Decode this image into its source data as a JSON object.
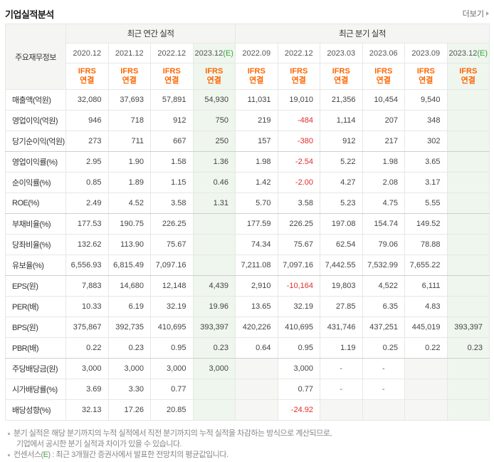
{
  "page": {
    "title": "기업실적분석",
    "more_label": "더보기"
  },
  "colors": {
    "ifrs_orange": "#ff6600",
    "estimate_green": "#3aa63a",
    "negative_red": "#e32c2c",
    "estimate_col_bg": "#eff6ee",
    "strong_border": "#c3c3c1"
  },
  "table": {
    "corner_label": "주요재무정보",
    "annual_band_label": "최근 연간 실적",
    "quarter_band_label": "최근 분기 실적",
    "ifrs_line1": "IFRS",
    "ifrs_line2": "연결",
    "estimate_suffix": "(E)",
    "annual_count": 4,
    "group_end_rows": [
      2,
      5,
      8,
      12
    ],
    "columns": [
      {
        "period": "2020.12",
        "estimate": false,
        "section": "annual"
      },
      {
        "period": "2021.12",
        "estimate": false,
        "section": "annual"
      },
      {
        "period": "2022.12",
        "estimate": false,
        "section": "annual"
      },
      {
        "period": "2023.12",
        "estimate": true,
        "section": "annual"
      },
      {
        "period": "2022.09",
        "estimate": false,
        "section": "quarter"
      },
      {
        "period": "2022.12",
        "estimate": false,
        "section": "quarter"
      },
      {
        "period": "2023.03",
        "estimate": false,
        "section": "quarter"
      },
      {
        "period": "2023.06",
        "estimate": false,
        "section": "quarter"
      },
      {
        "period": "2023.09",
        "estimate": false,
        "section": "quarter"
      },
      {
        "period": "2023.12",
        "estimate": true,
        "section": "quarter"
      }
    ]
  },
  "rows": [
    {
      "label": "매출액(억원)",
      "annual": [
        "32,080",
        "37,693",
        "57,891",
        "54,930"
      ],
      "quarterly": [
        "11,031",
        "19,010",
        "21,356",
        "10,454",
        "9,540",
        ""
      ]
    },
    {
      "label": "영업이익(억원)",
      "annual": [
        "946",
        "718",
        "912",
        "750"
      ],
      "quarterly": [
        "219",
        "-484",
        "1,114",
        "207",
        "348",
        ""
      ]
    },
    {
      "label": "당기순이익(억원)",
      "annual": [
        "273",
        "711",
        "667",
        "250"
      ],
      "quarterly": [
        "157",
        "-380",
        "912",
        "217",
        "302",
        ""
      ]
    },
    {
      "label": "영업이익률(%)",
      "annual": [
        "2.95",
        "1.90",
        "1.58",
        "1.36"
      ],
      "quarterly": [
        "1.98",
        "-2.54",
        "5.22",
        "1.98",
        "3.65",
        ""
      ]
    },
    {
      "label": "순이익률(%)",
      "annual": [
        "0.85",
        "1.89",
        "1.15",
        "0.46"
      ],
      "quarterly": [
        "1.42",
        "-2.00",
        "4.27",
        "2.08",
        "3.17",
        ""
      ]
    },
    {
      "label": "ROE(%)",
      "annual": [
        "2.49",
        "4.52",
        "3.58",
        "1.31"
      ],
      "quarterly": [
        "5.70",
        "3.58",
        "5.23",
        "4.75",
        "5.55",
        ""
      ]
    },
    {
      "label": "부채비율(%)",
      "annual": [
        "177.53",
        "190.75",
        "226.25",
        ""
      ],
      "quarterly": [
        "177.59",
        "226.25",
        "197.08",
        "154.74",
        "149.52",
        ""
      ]
    },
    {
      "label": "당좌비율(%)",
      "annual": [
        "132.62",
        "113.90",
        "75.67",
        ""
      ],
      "quarterly": [
        "74.34",
        "75.67",
        "62.54",
        "79.06",
        "78.88",
        ""
      ]
    },
    {
      "label": "유보율(%)",
      "annual": [
        "6,556.93",
        "6,815.49",
        "7,097.16",
        ""
      ],
      "quarterly": [
        "7,211.08",
        "7,097.16",
        "7,442.55",
        "7,532.99",
        "7,655.22",
        ""
      ]
    },
    {
      "label": "EPS(원)",
      "annual": [
        "7,883",
        "14,680",
        "12,148",
        "4,439"
      ],
      "quarterly": [
        "2,910",
        "-10,164",
        "19,803",
        "4,522",
        "6,111",
        ""
      ]
    },
    {
      "label": "PER(배)",
      "annual": [
        "10.33",
        "6.19",
        "32.19",
        "19.96"
      ],
      "quarterly": [
        "13.65",
        "32.19",
        "27.85",
        "6.35",
        "4.83",
        ""
      ]
    },
    {
      "label": "BPS(원)",
      "annual": [
        "375,867",
        "392,735",
        "410,695",
        "393,397"
      ],
      "quarterly": [
        "420,226",
        "410,695",
        "431,746",
        "437,251",
        "445,019",
        "393,397"
      ]
    },
    {
      "label": "PBR(배)",
      "annual": [
        "0.22",
        "0.23",
        "0.95",
        "0.23"
      ],
      "quarterly": [
        "0.64",
        "0.95",
        "1.19",
        "0.25",
        "0.22",
        "0.23"
      ]
    },
    {
      "label": "주당배당금(원)",
      "annual": [
        "3,000",
        "3,000",
        "3,000",
        "3,000"
      ],
      "quarterly": [
        "",
        "3,000",
        "-",
        "-",
        "",
        ""
      ]
    },
    {
      "label": "시가배당률(%)",
      "annual": [
        "3.69",
        "3.30",
        "0.77",
        ""
      ],
      "quarterly": [
        "",
        "0.77",
        "-",
        "-",
        "",
        ""
      ]
    },
    {
      "label": "배당성향(%)",
      "annual": [
        "32.13",
        "17.26",
        "20.85",
        ""
      ],
      "quarterly": [
        "",
        "-24.92",
        "",
        "",
        "",
        ""
      ]
    }
  ],
  "footnotes": {
    "note1_line1": "분기 실적은 해당 분기까지의 누적 실적에서 직전 분기까지의 누적 실적을 차감하는 방식으로 계산되므로,",
    "note1_line2": "기업에서 공시한 분기 실적과 차이가 있을 수 있습니다.",
    "note2_prefix": "컨센서스(",
    "note2_e": "E",
    "note2_suffix": ") : 최근 3개월간 증권사에서 발표한 전망치의 평균값입니다."
  }
}
